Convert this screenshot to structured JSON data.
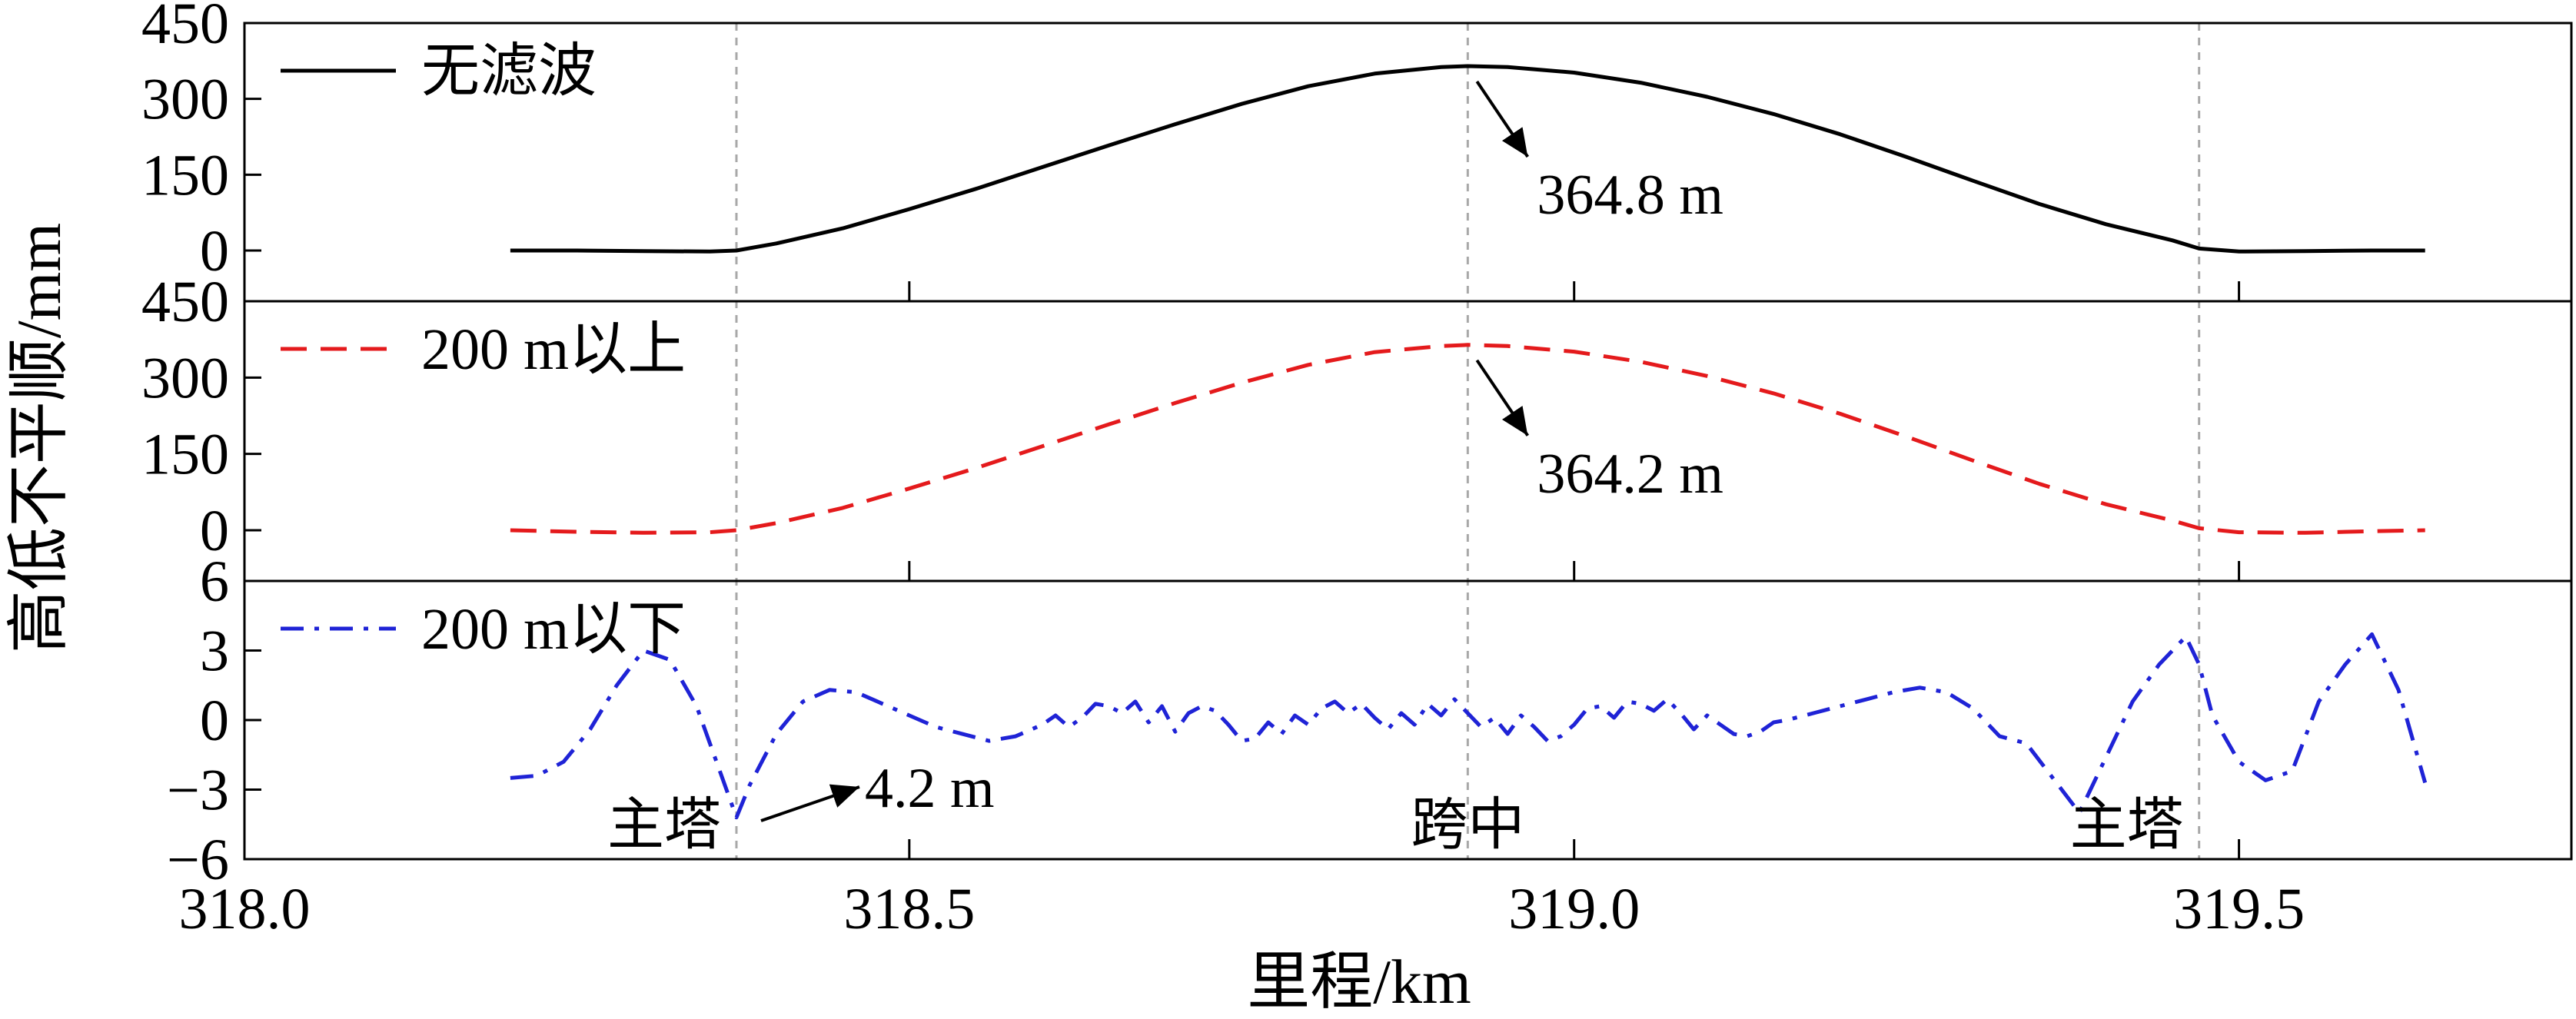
{
  "chart_data": {
    "type": "line",
    "xlabel": "里程/km",
    "ylabel": "高低不平顺/mm",
    "xlim": [
      318.0,
      319.75
    ],
    "x_ticks": [
      "318.0",
      "318.5",
      "319.0",
      "319.5"
    ],
    "grid": false,
    "legend_position": "top-left",
    "reference_lines": [
      {
        "x": 318.37,
        "label": "主塔"
      },
      {
        "x": 318.92,
        "label": "跨中"
      },
      {
        "x": 319.47,
        "label": "主塔"
      }
    ],
    "panels": [
      {
        "ylim": [
          -40,
          450
        ],
        "y_ticks": [
          "0",
          "150",
          "300",
          "450"
        ],
        "series": [
          {
            "name": "无滤波",
            "color": "#000000",
            "style": "solid",
            "x": [
              318.2,
              318.25,
              318.3,
              318.35,
              318.37,
              318.4,
              318.45,
              318.5,
              318.55,
              318.6,
              318.65,
              318.7,
              318.75,
              318.8,
              318.85,
              318.9,
              318.92,
              318.95,
              319.0,
              319.05,
              319.1,
              319.15,
              319.2,
              319.25,
              319.3,
              319.35,
              319.4,
              319.45,
              319.47,
              319.5,
              319.55,
              319.6,
              319.64
            ],
            "y": [
              0,
              0,
              -1,
              -2,
              0,
              14,
              44,
              82,
              122,
              165,
              208,
              250,
              290,
              325,
              350,
              363,
              364.8,
              363,
              352,
              332,
              304,
              270,
              230,
              185,
              138,
              92,
              52,
              20,
              4,
              -2,
              -1,
              0,
              0
            ]
          }
        ],
        "annotation": {
          "text": "364.8 m",
          "x": 318.92,
          "y": 364.8
        }
      },
      {
        "ylim": [
          -40,
          450
        ],
        "y_ticks": [
          "0",
          "150",
          "300",
          "450"
        ],
        "series": [
          {
            "name": "200 m以上",
            "color": "#e41a1c",
            "style": "dashed",
            "x": [
              318.2,
              318.25,
              318.3,
              318.35,
              318.37,
              318.4,
              318.45,
              318.5,
              318.55,
              318.6,
              318.65,
              318.7,
              318.75,
              318.8,
              318.85,
              318.9,
              318.92,
              318.95,
              319.0,
              319.05,
              319.1,
              319.15,
              319.2,
              319.25,
              319.3,
              319.35,
              319.4,
              319.45,
              319.47,
              319.5,
              319.55,
              319.6,
              319.64
            ],
            "y": [
              0,
              -3,
              -5,
              -4,
              0,
              14,
              44,
              82,
              122,
              165,
              208,
              250,
              290,
              325,
              350,
              362,
              364.2,
              362,
              351,
              331,
              303,
              269,
              229,
              184,
              137,
              91,
              51,
              19,
              4,
              -4,
              -5,
              -2,
              0
            ]
          }
        ],
        "annotation": {
          "text": "364.2 m",
          "x": 318.92,
          "y": 364.2
        }
      },
      {
        "ylim": [
          -6,
          6
        ],
        "y_ticks": [
          "−6",
          "−3",
          "0",
          "3",
          "6"
        ],
        "series": [
          {
            "name": "200 m以下",
            "color": "#1f23d6",
            "style": "dashdot",
            "x": [
              318.2,
              318.22,
              318.24,
              318.26,
              318.28,
              318.3,
              318.32,
              318.34,
              318.36,
              318.37,
              318.38,
              318.4,
              318.42,
              318.44,
              318.46,
              318.48,
              318.5,
              318.52,
              318.54,
              318.56,
              318.58,
              318.6,
              318.61,
              318.62,
              318.63,
              318.64,
              318.65,
              318.66,
              318.67,
              318.68,
              318.69,
              318.7,
              318.71,
              318.72,
              318.73,
              318.74,
              318.75,
              318.76,
              318.77,
              318.78,
              318.79,
              318.8,
              318.81,
              318.82,
              318.83,
              318.84,
              318.85,
              318.86,
              318.87,
              318.88,
              318.89,
              318.9,
              318.91,
              318.92,
              318.93,
              318.94,
              318.95,
              318.96,
              318.97,
              318.98,
              318.99,
              319.0,
              319.01,
              319.02,
              319.03,
              319.04,
              319.05,
              319.06,
              319.07,
              319.08,
              319.09,
              319.1,
              319.11,
              319.12,
              319.13,
              319.14,
              319.15,
              319.16,
              319.18,
              319.2,
              319.22,
              319.24,
              319.26,
              319.28,
              319.3,
              319.32,
              319.34,
              319.36,
              319.38,
              319.4,
              319.42,
              319.44,
              319.46,
              319.47,
              319.48,
              319.5,
              319.52,
              319.54,
              319.56,
              319.58,
              319.6,
              319.62,
              319.64
            ],
            "y": [
              -2.5,
              -2.4,
              -1.8,
              -0.4,
              1.5,
              3.0,
              2.6,
              0.6,
              -2.6,
              -4.2,
              -2.8,
              -0.6,
              0.8,
              1.3,
              1.2,
              0.7,
              0.2,
              -0.3,
              -0.6,
              -0.9,
              -0.7,
              -0.2,
              0.2,
              -0.3,
              0.1,
              0.7,
              0.6,
              0.3,
              0.8,
              -0.1,
              0.6,
              -0.5,
              0.3,
              0.6,
              0.4,
              -0.2,
              -0.9,
              -0.8,
              -0.1,
              -0.6,
              0.2,
              -0.2,
              0.5,
              0.8,
              0.3,
              0.7,
              0.1,
              -0.4,
              0.3,
              -0.2,
              0.7,
              0.2,
              0.9,
              0.3,
              -0.3,
              0.1,
              -0.6,
              0.2,
              -0.3,
              -0.9,
              -0.7,
              -0.2,
              0.5,
              0.6,
              0.1,
              0.8,
              0.7,
              0.4,
              0.9,
              0.3,
              -0.4,
              0.2,
              -0.2,
              -0.6,
              -0.7,
              -0.5,
              -0.1,
              0.0,
              0.3,
              0.6,
              0.9,
              1.2,
              1.4,
              1.2,
              0.5,
              -0.7,
              -1.0,
              -2.5,
              -4.0,
              -1.6,
              0.8,
              2.4,
              3.6,
              2.4,
              0.2,
              -1.8,
              -2.6,
              -2.2,
              0.8,
              2.4,
              3.7,
              1.3,
              -2.7
            ],
            "x_clean": []
          }
        ],
        "annotation": {
          "text": "4.2 m",
          "x": 318.37,
          "y": -4.2
        }
      }
    ]
  }
}
